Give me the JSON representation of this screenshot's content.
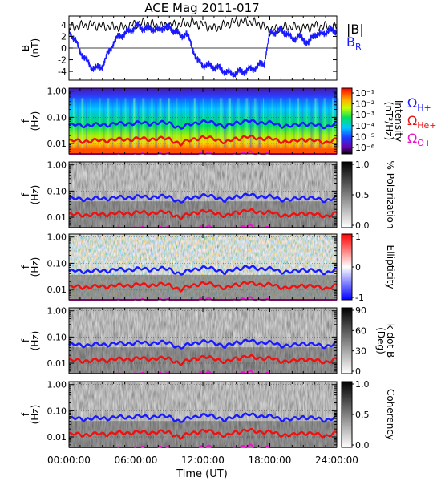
{
  "title": "ACE Mag 2011-017",
  "chart_data": [
    {
      "type": "line",
      "ylabel": "B",
      "yunit": "(nT)",
      "ylim": [
        -5.5,
        5.5
      ],
      "yticks": [
        "4",
        "2",
        "0",
        "-2",
        "-4"
      ],
      "series": [
        {
          "name": "|B|",
          "color": "#000000",
          "x": [
            0,
            1,
            2,
            3,
            4,
            5,
            6,
            7,
            8,
            9,
            10,
            11,
            12,
            13,
            14,
            15,
            16,
            17,
            18,
            19,
            20,
            21,
            22,
            23,
            24
          ],
          "values": [
            3.5,
            3.8,
            4.0,
            3.8,
            3.6,
            3.5,
            4.2,
            4.3,
            3.8,
            3.9,
            4.1,
            4.4,
            4.0,
            3.3,
            4.0,
            4.6,
            4.5,
            4.2,
            3.0,
            3.6,
            3.7,
            3.4,
            3.8,
            3.7,
            3.6
          ]
        },
        {
          "name": "B",
          "subscript": "R",
          "color": "#1a1aff",
          "x": [
            0,
            0.5,
            1,
            1.5,
            2,
            2.5,
            3,
            3.5,
            4,
            4.5,
            5,
            5.5,
            6,
            6.5,
            7,
            7.5,
            8,
            8.5,
            9,
            9.5,
            10,
            10.5,
            11,
            11.5,
            12,
            12.5,
            13,
            13.5,
            14,
            14.5,
            15,
            15.5,
            16,
            16.5,
            17,
            17.5,
            18,
            18.5,
            19,
            19.5,
            20,
            20.5,
            21,
            21.5,
            22,
            22.5,
            23,
            23.5,
            24
          ],
          "values": [
            3.0,
            1.5,
            -0.5,
            -2.0,
            -3.2,
            -3.5,
            -3.0,
            -1.0,
            1.0,
            2.0,
            2.5,
            3.0,
            3.8,
            3.5,
            3.2,
            3.4,
            3.0,
            3.6,
            3.4,
            3.0,
            2.0,
            2.5,
            0.5,
            -2.2,
            -2.8,
            -3.0,
            -3.2,
            -3.5,
            -4.0,
            -4.4,
            -4.2,
            -4.0,
            -3.8,
            -3.5,
            -3.0,
            -2.5,
            2.5,
            2.8,
            3.0,
            2.6,
            1.5,
            2.0,
            1.5,
            0.8,
            2.5,
            2.2,
            2.8,
            3.0,
            3.0
          ]
        }
      ]
    },
    {
      "type": "heatmap",
      "ylabel": "f",
      "yunit": "(Hz)",
      "yscale": "log",
      "ylim": [
        0.004,
        1.3
      ],
      "yticks": [
        "1.00",
        "0.10",
        "0.01"
      ],
      "colorbar_label": "Intensity",
      "colorbar_unit": "(nT²/Hz)",
      "colorbar_ticks": [
        "10⁻¹",
        "10⁻²",
        "10⁻³",
        "10⁻⁴",
        "10⁻⁵",
        "10⁻⁶"
      ],
      "colorscale": "rainbow"
    },
    {
      "type": "heatmap",
      "ylabel": "f",
      "yunit": "(Hz)",
      "yscale": "log",
      "ylim": [
        0.004,
        1.3
      ],
      "yticks": [
        "1.00",
        "0.10",
        "0.01"
      ],
      "colorbar_label": "% Polarization",
      "colorbar_ticks": [
        "1.0",
        "0.5",
        "0.0"
      ],
      "colorscale": "grayscale"
    },
    {
      "type": "heatmap",
      "ylabel": "f",
      "yunit": "(Hz)",
      "yscale": "log",
      "ylim": [
        0.004,
        1.3
      ],
      "yticks": [
        "1.00",
        "0.10",
        "0.01"
      ],
      "colorbar_label": "Ellipticity",
      "colorbar_ticks": [
        "1",
        "0",
        "-1"
      ],
      "colorscale": "blue-white-red"
    },
    {
      "type": "heatmap",
      "ylabel": "f",
      "yunit": "(Hz)",
      "yscale": "log",
      "ylim": [
        0.004,
        1.3
      ],
      "yticks": [
        "1.00",
        "0.10",
        "0.01"
      ],
      "colorbar_label": "k dot B",
      "colorbar_unit": "(Deg)",
      "colorbar_ticks": [
        "90",
        "60",
        "30",
        "0"
      ],
      "colorscale": "grayscale"
    },
    {
      "type": "heatmap",
      "ylabel": "f",
      "yunit": "(Hz)",
      "yscale": "log",
      "ylim": [
        0.004,
        1.3
      ],
      "yticks": [
        "1.00",
        "0.10",
        "0.01"
      ],
      "colorbar_label": "Coherency",
      "colorbar_ticks": [
        "1.0",
        "0.5",
        "0.0"
      ],
      "colorscale": "grayscale"
    }
  ],
  "gyro_lines": [
    {
      "name": "Ω",
      "subscript": "H+",
      "color": "#1a1aff",
      "x": [
        0,
        2,
        4,
        6,
        8,
        9,
        10,
        11,
        12,
        13,
        14,
        15,
        16,
        17,
        18,
        19,
        20,
        21,
        22,
        23,
        24
      ],
      "values": [
        0.05,
        0.05,
        0.055,
        0.06,
        0.06,
        0.062,
        0.035,
        0.06,
        0.065,
        0.065,
        0.04,
        0.065,
        0.07,
        0.065,
        0.06,
        0.05,
        0.045,
        0.06,
        0.05,
        0.045,
        0.055
      ]
    },
    {
      "name": "Ω",
      "subscript": "He+",
      "color": "#ee1111",
      "x": [
        0,
        2,
        4,
        6,
        8,
        9,
        10,
        11,
        12,
        13,
        14,
        15,
        16,
        17,
        18,
        19,
        20,
        21,
        22,
        23,
        24
      ],
      "values": [
        0.0125,
        0.0125,
        0.0138,
        0.015,
        0.015,
        0.0155,
        0.0088,
        0.015,
        0.0163,
        0.0163,
        0.01,
        0.0163,
        0.0175,
        0.0163,
        0.015,
        0.0125,
        0.0113,
        0.015,
        0.0125,
        0.0113,
        0.0138
      ]
    },
    {
      "name": "Ω",
      "subscript": "O+",
      "color": "#ee11cc",
      "x": [
        0,
        2,
        4,
        6,
        8,
        9,
        10,
        11,
        12,
        13,
        14,
        15,
        16,
        17,
        18,
        19,
        20,
        21,
        22,
        23,
        24
      ],
      "values": [
        0.0031,
        0.0031,
        0.0034,
        0.0037,
        0.0037,
        0.0039,
        0.0022,
        0.0037,
        0.0041,
        0.0041,
        0.0025,
        0.0041,
        0.0044,
        0.0041,
        0.0037,
        0.0031,
        0.0028,
        0.0037,
        0.0031,
        0.0028,
        0.0034
      ]
    }
  ],
  "xaxis": {
    "label": "Time (UT)",
    "xlim": [
      0,
      24
    ],
    "ticks": [
      "00:00:00",
      "06:00:00",
      "12:00:00",
      "18:00:00",
      "24:00:00"
    ]
  }
}
